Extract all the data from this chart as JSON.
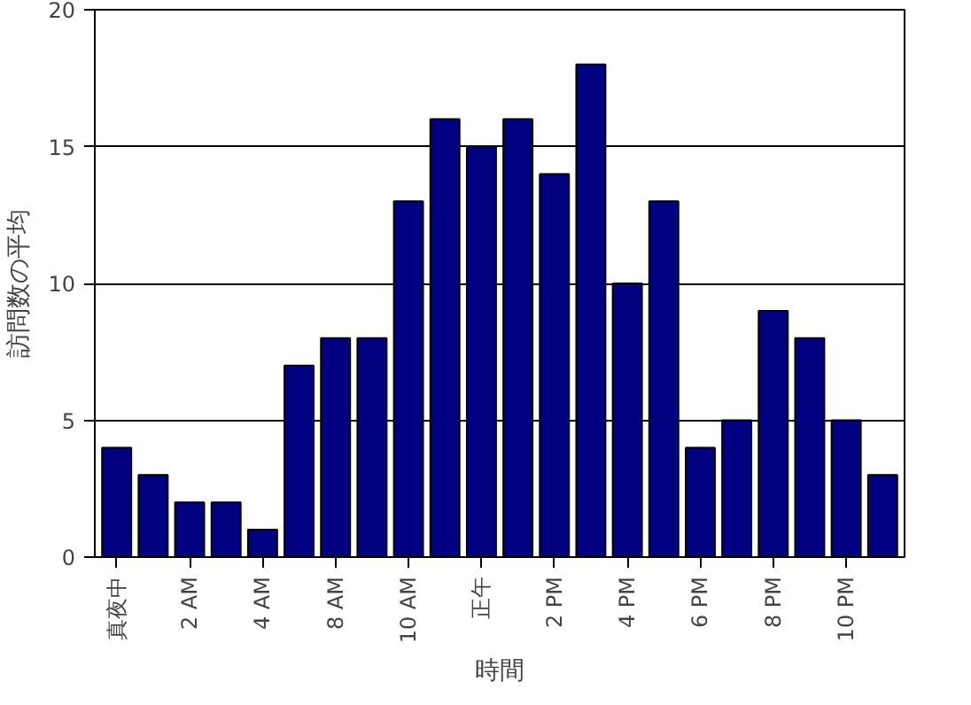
{
  "chart_data": {
    "type": "bar",
    "xlabel": "時間",
    "ylabel": "訪問数の平均",
    "categories": [
      "真夜中",
      null,
      "2 AM",
      null,
      "4 AM",
      null,
      "8 AM",
      null,
      "10 AM",
      null,
      "正午",
      null,
      "2 PM",
      null,
      "4 PM",
      null,
      "6 PM",
      null,
      "8 PM",
      null,
      "10 PM",
      null
    ],
    "values": [
      4,
      3,
      2,
      2,
      1,
      7,
      8,
      8,
      13,
      16,
      15,
      16,
      14,
      18,
      10,
      13,
      4,
      5,
      9,
      8,
      5,
      3
    ],
    "color": "#000080",
    "ylim": [
      0,
      20
    ],
    "yticks": [
      0,
      5,
      10,
      15,
      20
    ],
    "grid": "y"
  }
}
